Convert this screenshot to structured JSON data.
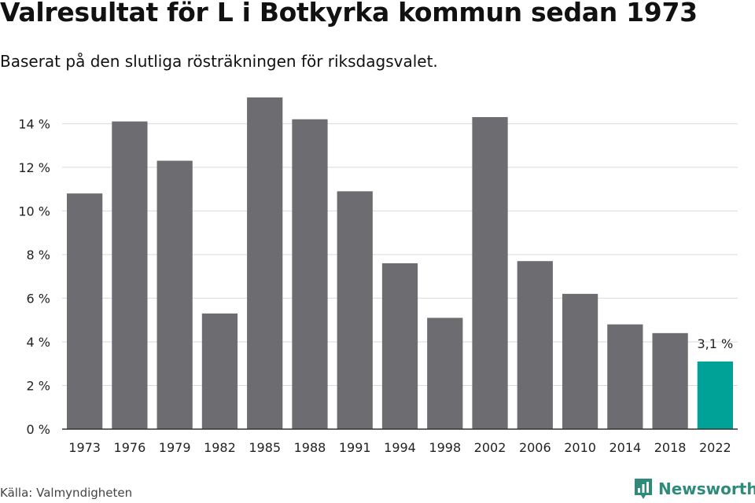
{
  "title": "Valresultat för L i Botkyrka kommun sedan 1973",
  "subtitle": "Baserat på den slutliga rösträkningen för riksdagsvalet.",
  "source": "Källa: Valmyndigheten",
  "brand": {
    "name": "Newsworthy",
    "icon": "newsworthy-logo-icon"
  },
  "colors": {
    "bar": "#6d6c71",
    "highlight": "#00a196",
    "grid": "#d9d9d9",
    "axis": "#333333"
  },
  "chart_data": {
    "type": "bar",
    "title": "Valresultat för L i Botkyrka kommun sedan 1973",
    "subtitle": "Baserat på den slutliga rösträkningen för riksdagsvalet.",
    "xlabel": "",
    "ylabel": "",
    "ylim": [
      0,
      15.2
    ],
    "yticks": [
      0,
      2,
      4,
      6,
      8,
      10,
      12,
      14
    ],
    "ytick_labels": [
      "0 %",
      "2 %",
      "4 %",
      "6 %",
      "8 %",
      "10 %",
      "12 %",
      "14 %"
    ],
    "grid": true,
    "categories": [
      "1973",
      "1976",
      "1979",
      "1982",
      "1985",
      "1988",
      "1991",
      "1994",
      "1998",
      "2002",
      "2006",
      "2010",
      "2014",
      "2018",
      "2022"
    ],
    "values": [
      10.8,
      14.1,
      12.3,
      5.3,
      15.2,
      14.2,
      10.9,
      7.6,
      5.1,
      14.3,
      7.7,
      6.2,
      4.8,
      4.4,
      3.1
    ],
    "highlight_index": 14,
    "data_labels": [
      {
        "index": 14,
        "text": "3,1 %"
      }
    ]
  }
}
